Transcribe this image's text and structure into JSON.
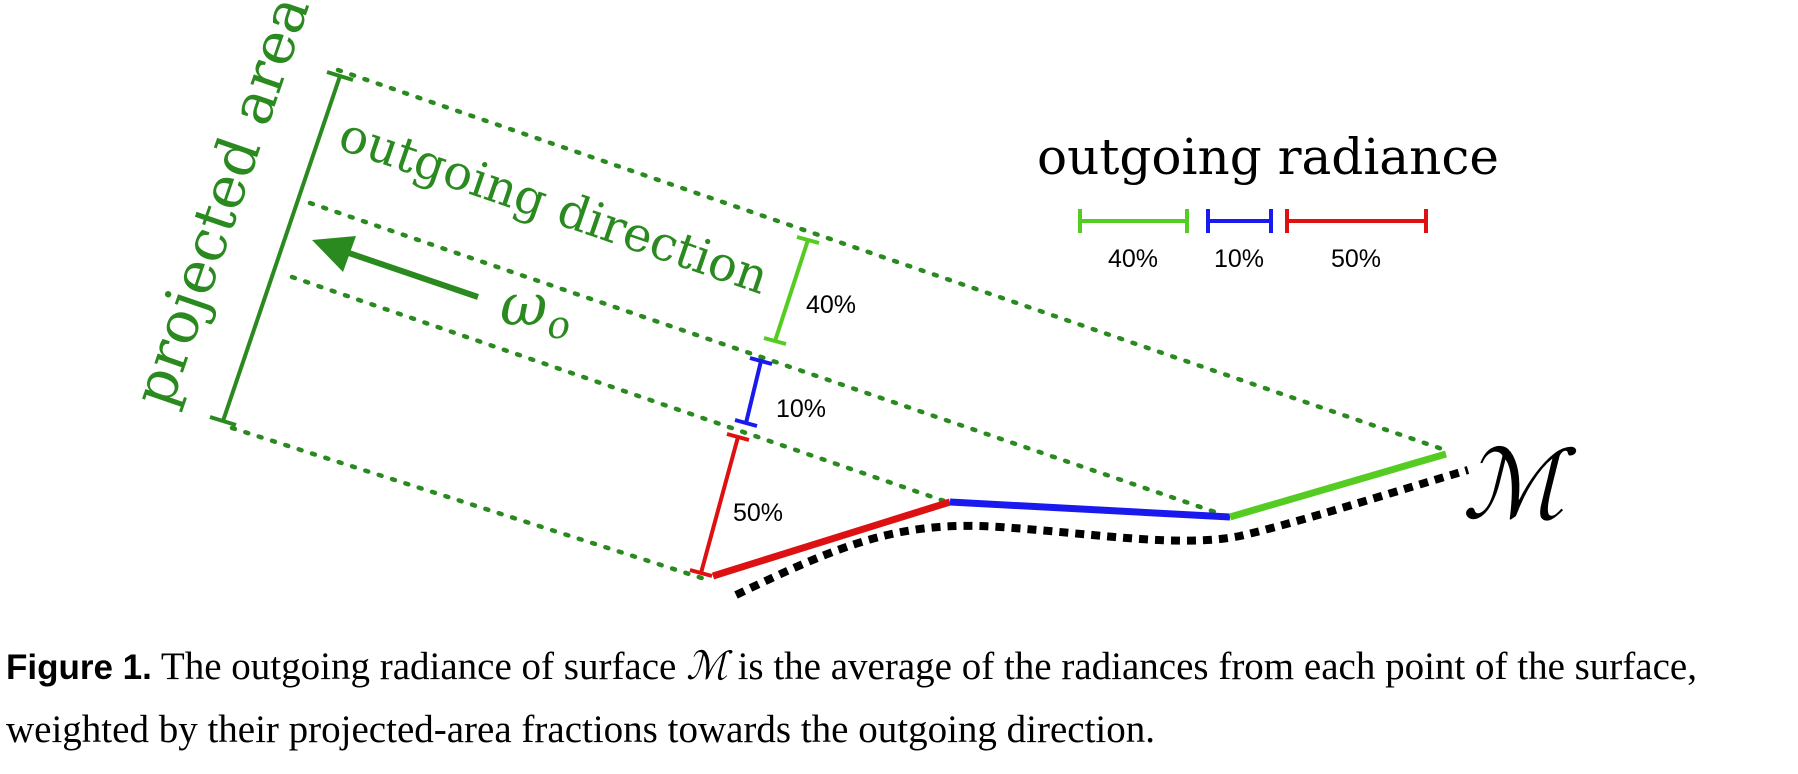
{
  "diagram": {
    "projected_area_label": "projected area",
    "outgoing_direction_label": "outgoing direction",
    "omega_label": "ω",
    "omega_subscript": "o",
    "surface_label": "ℳ",
    "legend": {
      "title": "outgoing radiance",
      "items": [
        {
          "label": "40%",
          "color": "#55cc22"
        },
        {
          "label": "10%",
          "color": "#1a1aee"
        },
        {
          "label": "50%",
          "color": "#dd1111"
        }
      ]
    },
    "segment_labels": {
      "green": "40%",
      "blue": "10%",
      "red": "50%"
    },
    "colors": {
      "projection": "#2a8a1f",
      "green": "#55cc22",
      "blue": "#1a1aee",
      "red": "#dd1111",
      "surface": "#000000"
    }
  },
  "caption": {
    "label": "Figure 1.",
    "text_before": "The outgoing radiance of surface",
    "symbol": "ℳ",
    "text_after": "is the average of the radiances from each point of the surface, weighted by their projected-area fractions towards the outgoing direction."
  }
}
